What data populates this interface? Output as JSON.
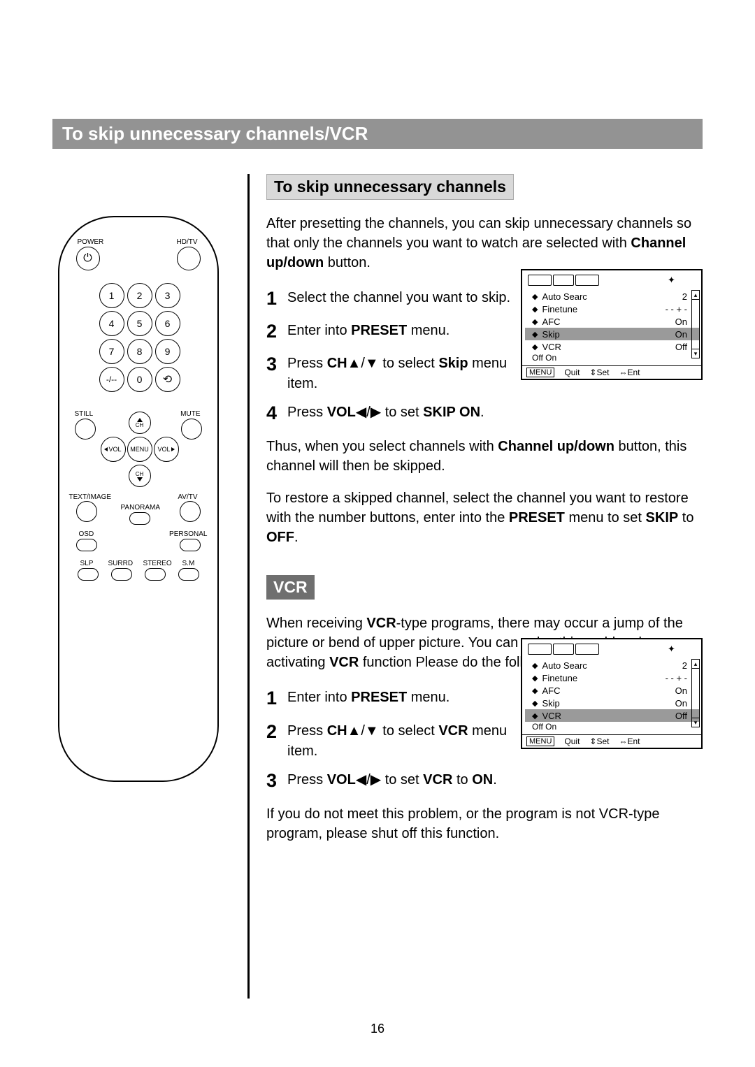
{
  "title": "To skip unnecessary channels/VCR",
  "pageNumber": "16",
  "remote": {
    "labels": {
      "power": "POWER",
      "hdtv": "HD/TV",
      "still": "STILL",
      "mute": "MUTE",
      "ch": "CH",
      "vol": "VOL",
      "menu": "MENU",
      "textimage": "TEXT/IMAGE",
      "avtv": "AV/TV",
      "panorama": "PANORAMA",
      "osd": "OSD",
      "personal": "PERSONAL",
      "slp": "SLP",
      "surrd": "SURRD",
      "stereo": "STEREO",
      "sm": "S.M",
      "dash": "-/--",
      "power_sym": "⏻",
      "recall": "⟲"
    },
    "nums": [
      "1",
      "2",
      "3",
      "4",
      "5",
      "6",
      "7",
      "8",
      "9",
      "0"
    ]
  },
  "section1": {
    "heading": "To skip unnecessary channels",
    "intro": "After presetting the channels, you can skip unnecessary channels so that only the channels you want to watch are selected with <b>Channel up/down</b> button.",
    "steps": [
      "Select the channel you want to skip.",
      "Enter into <b>PRESET</b> menu.",
      "Press <b>CH</b>▲/▼ to select <b>Skip</b> menu item.",
      "Press <b>VOL</b>◀/▶ to set <b>SKIP ON</b>."
    ],
    "para2": "Thus, when you select channels with <b>Channel up/down</b> button, this channel will then be skipped.",
    "para3": "To restore a skipped channel, select the channel you want to restore with the number buttons, enter into the <b>PRESET</b> menu to set <b>SKIP</b> to <b>OFF</b>."
  },
  "section2": {
    "heading": "VCR",
    "intro": "When receiving <b>VCR</b>-type programs, there may occur a jump of the picture or bend of upper picture. You can solve this problem by activating <b>VCR</b> function Please do the following steps:",
    "steps": [
      "Enter into <b>PRESET</b> menu.",
      "Press <b>CH</b>▲/▼ to select <b>VCR</b> menu item.",
      "Press <b>VOL</b>◀/▶ to set <b>VCR</b> to <b>ON</b>."
    ],
    "para2": "If you do not meet this problem, or the program is not VCR-type program, please shut off this function."
  },
  "osd": {
    "rows": [
      {
        "label": "Auto Searc",
        "val": "2"
      },
      {
        "label": "Finetune",
        "val": "- - + -"
      },
      {
        "label": "AFC",
        "val": "On"
      },
      {
        "label": "Skip",
        "val": "On"
      },
      {
        "label": "VCR",
        "val": "Off"
      }
    ],
    "sub": "Off  On",
    "foot": {
      "menu": "MENU",
      "quit": "Quit",
      "set": "Set",
      "ent": "Ent"
    },
    "highlight1": 3,
    "highlight2": 4
  }
}
